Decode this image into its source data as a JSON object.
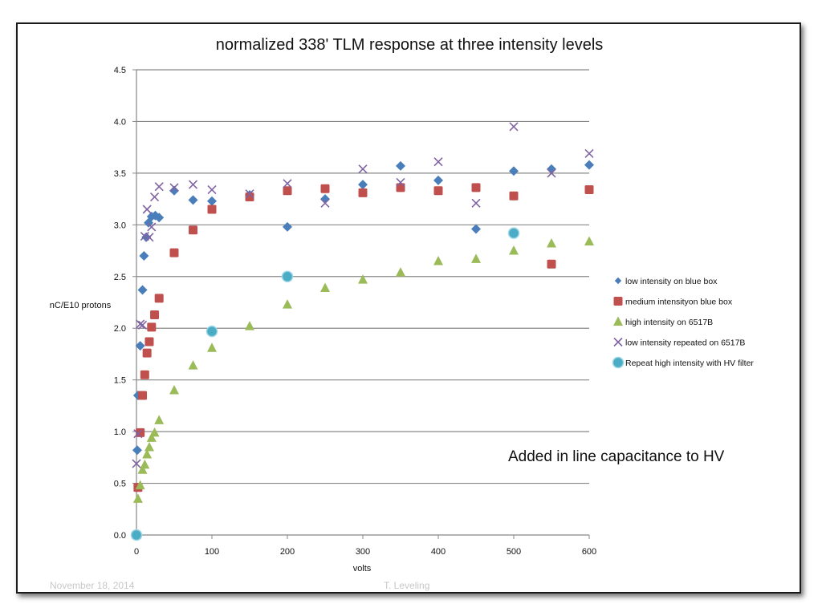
{
  "slide": {
    "footer_left": "November 18, 2014",
    "footer_center": "T. Leveling"
  },
  "chart_data": {
    "type": "scatter",
    "title": "normalized 338' TLM response at three intensity levels",
    "xlabel": "volts",
    "ylabel": "nC/E10 protons",
    "xlim": [
      0,
      600
    ],
    "ylim": [
      0,
      4.5
    ],
    "x_ticks": [
      "0",
      "100",
      "200",
      "300",
      "400",
      "500",
      "600"
    ],
    "y_ticks": [
      "0.0",
      "0.5",
      "1.0",
      "1.5",
      "2.0",
      "2.5",
      "3.0",
      "3.5",
      "4.0",
      "4.5"
    ],
    "grid": "horizontal",
    "legend_position": "right",
    "annotation": "Added in line capacitance to HV",
    "series": [
      {
        "name": "low intensity on blue box",
        "marker": "diamond",
        "color": "#4a7ebb",
        "points": [
          [
            0,
            0
          ],
          [
            1,
            0.82
          ],
          [
            2,
            1.35
          ],
          [
            5,
            1.83
          ],
          [
            8,
            2.37
          ],
          [
            10,
            2.7
          ],
          [
            13,
            2.88
          ],
          [
            16,
            3.02
          ],
          [
            20,
            3.08
          ],
          [
            25,
            3.09
          ],
          [
            30,
            3.07
          ],
          [
            50,
            3.33
          ],
          [
            75,
            3.24
          ],
          [
            100,
            3.23
          ],
          [
            150,
            3.29
          ],
          [
            200,
            2.98
          ],
          [
            250,
            3.25
          ],
          [
            300,
            3.39
          ],
          [
            350,
            3.57
          ],
          [
            400,
            3.43
          ],
          [
            450,
            2.96
          ],
          [
            500,
            3.52
          ],
          [
            550,
            3.54
          ],
          [
            600,
            3.58
          ]
        ]
      },
      {
        "name": "medium intensityon blue box",
        "marker": "square",
        "color": "#c0504d",
        "points": [
          [
            0,
            0
          ],
          [
            2,
            0.46
          ],
          [
            5,
            0.99
          ],
          [
            8,
            1.35
          ],
          [
            11,
            1.55
          ],
          [
            14,
            1.76
          ],
          [
            17,
            1.87
          ],
          [
            20,
            2.01
          ],
          [
            24,
            2.13
          ],
          [
            30,
            2.29
          ],
          [
            50,
            2.73
          ],
          [
            75,
            2.95
          ],
          [
            100,
            3.15
          ],
          [
            150,
            3.27
          ],
          [
            200,
            3.33
          ],
          [
            250,
            3.35
          ],
          [
            300,
            3.31
          ],
          [
            350,
            3.36
          ],
          [
            400,
            3.33
          ],
          [
            450,
            3.36
          ],
          [
            500,
            3.28
          ],
          [
            550,
            2.62
          ],
          [
            600,
            3.34
          ]
        ]
      },
      {
        "name": "high intensity on 6517B",
        "marker": "triangle",
        "color": "#9bbb59",
        "points": [
          [
            0,
            0
          ],
          [
            2,
            0.35
          ],
          [
            5,
            0.48
          ],
          [
            8,
            0.63
          ],
          [
            11,
            0.68
          ],
          [
            14,
            0.78
          ],
          [
            17,
            0.85
          ],
          [
            20,
            0.94
          ],
          [
            24,
            0.99
          ],
          [
            30,
            1.11
          ],
          [
            50,
            1.4
          ],
          [
            75,
            1.64
          ],
          [
            100,
            1.81
          ],
          [
            150,
            2.02
          ],
          [
            200,
            2.23
          ],
          [
            250,
            2.39
          ],
          [
            300,
            2.47
          ],
          [
            350,
            2.54
          ],
          [
            400,
            2.65
          ],
          [
            450,
            2.67
          ],
          [
            500,
            2.75
          ],
          [
            550,
            2.82
          ],
          [
            600,
            2.84
          ]
        ]
      },
      {
        "name": "low intensity repeated on 6517B",
        "marker": "x",
        "color": "#8064a2",
        "points": [
          [
            0,
            0.69
          ],
          [
            2,
            0.98
          ],
          [
            5,
            2.04
          ],
          [
            8,
            2.03
          ],
          [
            11,
            2.89
          ],
          [
            14,
            3.15
          ],
          [
            17,
            2.88
          ],
          [
            20,
            2.98
          ],
          [
            24,
            3.27
          ],
          [
            30,
            3.37
          ],
          [
            50,
            3.36
          ],
          [
            75,
            3.39
          ],
          [
            100,
            3.34
          ],
          [
            150,
            3.3
          ],
          [
            200,
            3.4
          ],
          [
            250,
            3.21
          ],
          [
            300,
            3.54
          ],
          [
            350,
            3.41
          ],
          [
            400,
            3.61
          ],
          [
            450,
            3.21
          ],
          [
            500,
            3.95
          ],
          [
            550,
            3.5
          ],
          [
            600,
            3.69
          ]
        ]
      },
      {
        "name": "Repeat high intensity with HV filter",
        "marker": "circle",
        "color": "#4bacc6",
        "points": [
          [
            0,
            0
          ],
          [
            100,
            1.97
          ],
          [
            200,
            2.5
          ],
          [
            500,
            2.92
          ]
        ]
      }
    ]
  }
}
